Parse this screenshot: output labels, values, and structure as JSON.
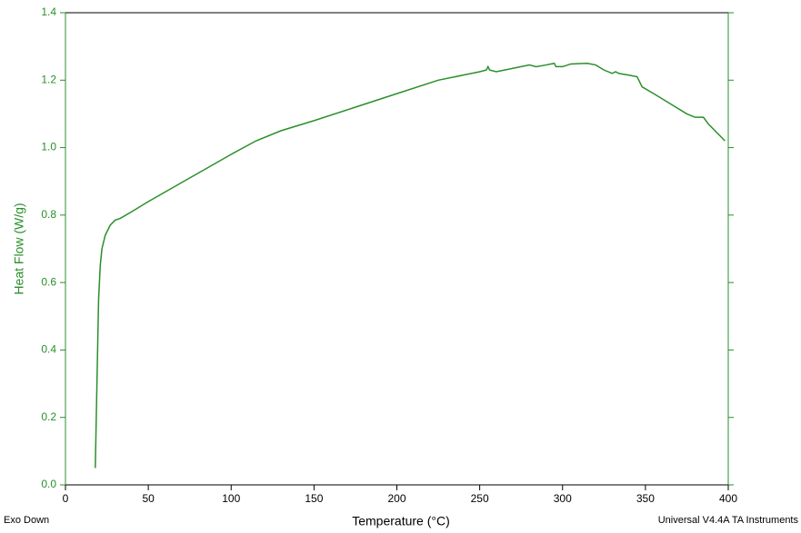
{
  "chart_data": {
    "type": "line",
    "x_label": "Temperature (°C)",
    "y_label": "Heat Flow (W/g)",
    "annotations": [
      "Exo Down",
      "Universal V4.4A TA Instruments"
    ],
    "color": "#2a8f2a",
    "x": [
      18,
      19,
      20,
      21,
      22,
      24,
      27,
      30,
      33,
      40,
      50,
      75,
      100,
      115,
      130,
      150,
      175,
      200,
      225,
      250,
      254,
      255,
      256,
      260,
      270,
      280,
      284,
      290,
      295,
      296,
      300,
      305,
      315,
      320,
      325,
      330,
      332,
      334,
      340,
      345,
      348,
      355,
      365,
      375,
      380,
      385,
      388,
      392,
      398
    ],
    "values": [
      0.05,
      0.3,
      0.55,
      0.65,
      0.7,
      0.74,
      0.77,
      0.785,
      0.79,
      0.81,
      0.84,
      0.91,
      0.98,
      1.02,
      1.05,
      1.08,
      1.12,
      1.16,
      1.2,
      1.225,
      1.23,
      1.24,
      1.23,
      1.225,
      1.235,
      1.245,
      1.24,
      1.245,
      1.25,
      1.24,
      1.24,
      1.248,
      1.25,
      1.245,
      1.23,
      1.22,
      1.225,
      1.22,
      1.215,
      1.21,
      1.18,
      1.16,
      1.13,
      1.1,
      1.09,
      1.09,
      1.07,
      1.05,
      1.02
    ],
    "xlim": [
      0,
      400
    ],
    "xticks": [
      0,
      50,
      100,
      150,
      200,
      250,
      300,
      350,
      400
    ],
    "ylim": [
      0,
      1.4
    ],
    "yticks": [
      {
        "value": 0,
        "label": "0.0"
      },
      0.2,
      0.4,
      0.6,
      0.8,
      {
        "value": 1,
        "label": "1.0"
      },
      1.2,
      1.4
    ]
  }
}
